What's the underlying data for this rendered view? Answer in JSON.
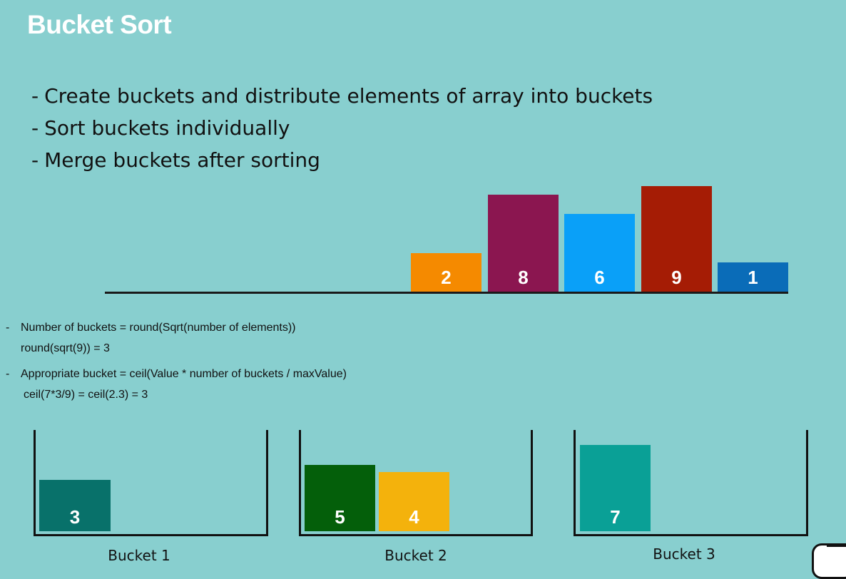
{
  "title": "Bucket Sort",
  "bullets": [
    "Create buckets and distribute elements of array into buckets",
    "Sort buckets individually",
    "Merge buckets after sorting"
  ],
  "array_bars": [
    {
      "value": "2",
      "color": "#f58a00"
    },
    {
      "value": "8",
      "color": "#8b1650"
    },
    {
      "value": "6",
      "color": "#0aa0f8"
    },
    {
      "value": "9",
      "color": "#a51c05"
    },
    {
      "value": "1",
      "color": "#0a6cb8"
    }
  ],
  "formulas": {
    "bullet_dash": "-",
    "num_buckets": "Number of buckets = round(Sqrt(number of elements))",
    "num_buckets_example": "round(sqrt(9)) = 3",
    "appropriate_bucket": "Appropriate bucket = ceil(Value * number of buckets / maxValue)",
    "appropriate_bucket_example": "ceil(7*3/9) = ceil(2.3) = 3"
  },
  "buckets": [
    {
      "caption": "Bucket 1",
      "items": [
        {
          "value": "3",
          "color": "#08716a"
        }
      ]
    },
    {
      "caption": "Bucket 2",
      "items": [
        {
          "value": "5",
          "color": "#045f0a"
        },
        {
          "value": "4",
          "color": "#f4b20c"
        }
      ]
    },
    {
      "caption": "Bucket 3",
      "items": [
        {
          "value": "7",
          "color": "#0aa096"
        }
      ]
    }
  ]
}
